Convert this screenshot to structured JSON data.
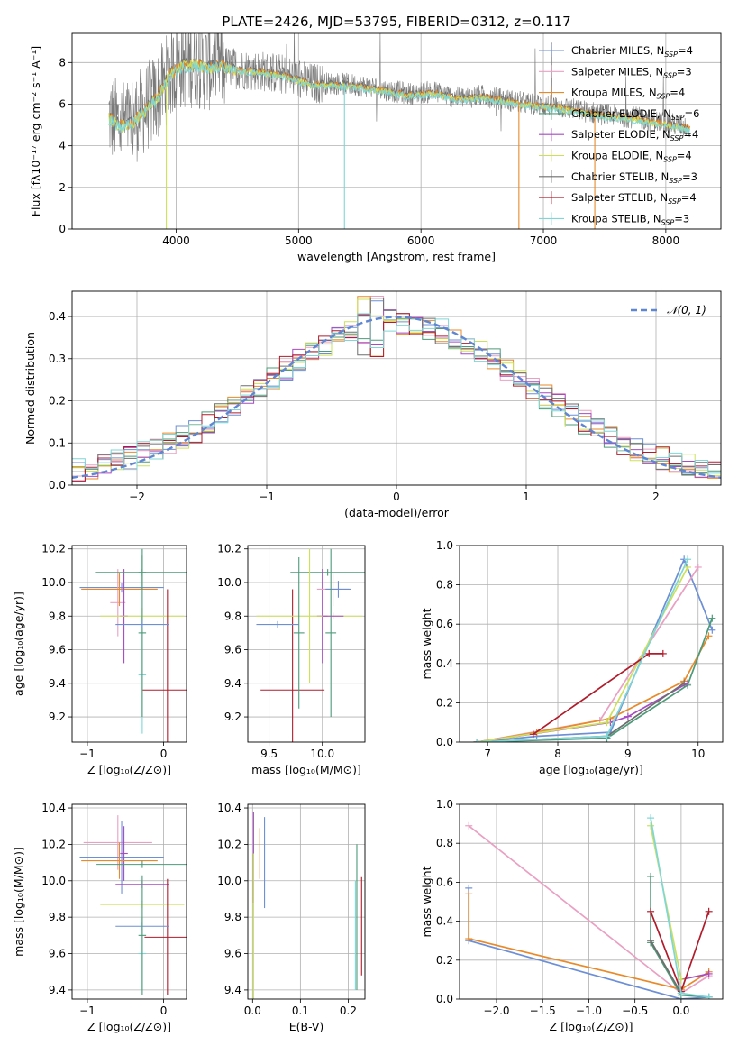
{
  "title": "PLATE=2426, MJD=53795, FIBERID=0312, z=0.117",
  "colors": [
    "#6d8fd6",
    "#e9a0c2",
    "#e88a2a",
    "#4d9a79",
    "#a64bc0",
    "#cde05a",
    "#6e6e6e",
    "#b01c2b",
    "#7fd6d6"
  ],
  "chart_data": [
    {
      "id": "spectrum",
      "type": "line",
      "xlabel": "wavelength [Angstrom, rest frame]",
      "ylabel": "Flux [fλ10⁻¹⁷ erg cm⁻² s⁻¹ A⁻¹]",
      "xlim": [
        3150,
        8450
      ],
      "ylim": [
        0,
        9.4
      ],
      "xticks": [
        4000,
        5000,
        6000,
        7000,
        8000
      ],
      "yticks": [
        0,
        2,
        4,
        6,
        8
      ],
      "legend_position": "top-right",
      "series": [
        {
          "name": "Chabrier MILES, N_SSP=4"
        },
        {
          "name": "Salpeter MILES, N_SSP=3"
        },
        {
          "name": "Kroupa MILES, N_SSP=4"
        },
        {
          "name": "Chabrier ELODIE, N_SSP=6"
        },
        {
          "name": "Salpeter ELODIE, N_SSP=4"
        },
        {
          "name": "Kroupa ELODIE, N_SSP=4"
        },
        {
          "name": "Chabrier STELIB, N_SSP=3"
        },
        {
          "name": "Salpeter STELIB, N_SSP=4"
        },
        {
          "name": "Kroupa STELIB, N_SSP=3"
        }
      ],
      "observed_continuum": {
        "x": [
          3450,
          3550,
          3650,
          3750,
          3850,
          3950,
          4050,
          4150,
          4250,
          4350,
          4500,
          4700,
          4900,
          5100,
          5300,
          5500,
          5700,
          5900,
          6100,
          6300,
          6500,
          6700,
          6900,
          7100,
          7300,
          7500,
          7700,
          7900,
          8100,
          8200
        ],
        "y": [
          5.4,
          5.0,
          5.2,
          5.8,
          6.4,
          7.5,
          7.9,
          8.0,
          7.8,
          7.9,
          7.7,
          7.6,
          7.4,
          7.0,
          7.0,
          6.9,
          6.7,
          6.5,
          6.6,
          6.3,
          6.4,
          6.2,
          6.0,
          5.9,
          5.7,
          5.5,
          5.4,
          5.2,
          5.0,
          4.9
        ]
      }
    },
    {
      "id": "residuals",
      "type": "histogram",
      "xlabel": "(data-model)/error",
      "ylabel": "Normed distribution",
      "xlim": [
        -2.5,
        2.5
      ],
      "ylim": [
        0,
        0.46
      ],
      "xticks": [
        -2,
        -1,
        0,
        1,
        2
      ],
      "yticks": [
        0.0,
        0.1,
        0.2,
        0.3,
        0.4
      ],
      "legend": "𝒩(0, 1)",
      "legend_position": "top-right",
      "bin_width": 0.1,
      "bin_start": -2.5
    },
    {
      "id": "age-vs-Z",
      "type": "errorbar",
      "xlabel": "Z [log₁₀(Z/Z⊙)]",
      "ylabel": "age  [log₁₀(age/yr)]",
      "xlim": [
        -1.2,
        0.3
      ],
      "ylim": [
        9.05,
        10.22
      ],
      "xticks": [
        -1,
        0
      ],
      "yticks": [
        9.2,
        9.4,
        9.6,
        9.8,
        10.0,
        10.2
      ],
      "points": [
        {
          "c": 0,
          "x": -0.55,
          "xe": 0.55,
          "y": 9.97,
          "ye": 0.03
        },
        {
          "c": 1,
          "x": -0.6,
          "xe": 0.1,
          "y": 9.88,
          "ye": 0.2
        },
        {
          "c": 2,
          "x": -0.58,
          "xe": 0.5,
          "y": 9.96,
          "ye": 0.1
        },
        {
          "c": 3,
          "x": -0.28,
          "xe": 0.05,
          "y": 10.06,
          "ye": 0.1
        },
        {
          "c": 4,
          "x": -0.52,
          "xe": 0.05,
          "y": 9.8,
          "ye": 0.28
        },
        {
          "c": 5,
          "x": -0.28,
          "xe": 0.55,
          "y": 9.8,
          "ye": 0.05
        },
        {
          "c": 3,
          "x": -0.28,
          "xe": 0.62,
          "y": 10.06,
          "ye": 0.02
        },
        {
          "c": 7,
          "x": 0.05,
          "xe": 0.33,
          "y": 9.36,
          "ye": 0.6
        },
        {
          "c": 8,
          "x": -0.28,
          "xe": 0.05,
          "y": 9.45,
          "ye": 0.35
        },
        {
          "c": 3,
          "x": -0.28,
          "xe": 0.05,
          "y": 9.7,
          "ye": 0.5
        },
        {
          "c": 0,
          "x": -0.28,
          "xe": 0.35,
          "y": 9.75,
          "ye": 0.02
        }
      ]
    },
    {
      "id": "age-vs-mass",
      "type": "errorbar",
      "xlabel": "mass [log₁₀(M/M⊙)]",
      "ylabel": "",
      "xlim": [
        9.3,
        10.4
      ],
      "ylim": [
        9.05,
        10.22
      ],
      "xticks": [
        9.5,
        10.0
      ],
      "yticks": [
        9.2,
        9.4,
        9.6,
        9.8,
        10.0,
        10.2
      ],
      "points": [
        {
          "c": 3,
          "x": 10.05,
          "xe": 0.35,
          "y": 10.06,
          "ye": 0.02
        },
        {
          "c": 7,
          "x": 9.72,
          "xe": 0.3,
          "y": 9.36,
          "ye": 0.6
        },
        {
          "c": 4,
          "x": 10.0,
          "xe": 0.05,
          "y": 9.8,
          "ye": 0.28
        },
        {
          "c": 5,
          "x": 9.88,
          "xe": 0.5,
          "y": 9.8,
          "ye": 0.4
        },
        {
          "c": 3,
          "x": 9.78,
          "xe": 0.05,
          "y": 9.7,
          "ye": 0.45
        },
        {
          "c": 0,
          "x": 9.58,
          "xe": 0.2,
          "y": 9.75,
          "ye": 0.02
        },
        {
          "c": 1,
          "x": 10.1,
          "xe": 0.15,
          "y": 9.96,
          "ye": 0.1
        },
        {
          "c": 0,
          "x": 10.15,
          "xe": 0.12,
          "y": 9.96,
          "ye": 0.05
        },
        {
          "c": 3,
          "x": 10.08,
          "xe": 0.05,
          "y": 9.7,
          "ye": 0.5
        },
        {
          "c": 4,
          "x": 10.1,
          "xe": 0.1,
          "y": 9.8,
          "ye": 0.02
        }
      ]
    },
    {
      "id": "weight-vs-age",
      "type": "line",
      "xlabel": "age  [log₁₀(age/yr)]",
      "ylabel": "mass weight",
      "xlim": [
        6.6,
        10.35
      ],
      "ylim": [
        0,
        1.0
      ],
      "xticks": [
        7,
        8,
        9,
        10
      ],
      "yticks": [
        0.0,
        0.2,
        0.4,
        0.6,
        0.8,
        1.0
      ],
      "series": [
        {
          "c": 0,
          "x": [
            6.85,
            7.7,
            8.75,
            9.8,
            10.2
          ],
          "y": [
            0.0,
            0.03,
            0.05,
            0.93,
            0.57
          ]
        },
        {
          "c": 1,
          "x": [
            6.85,
            8.6,
            10.0
          ],
          "y": [
            0.0,
            0.11,
            0.89
          ]
        },
        {
          "c": 2,
          "x": [
            6.85,
            7.7,
            8.75,
            9.8,
            10.15
          ],
          "y": [
            0.0,
            0.05,
            0.12,
            0.31,
            0.54
          ]
        },
        {
          "c": 3,
          "x": [
            6.85,
            8.7,
            9.85,
            10.2
          ],
          "y": [
            0.0,
            0.02,
            0.29,
            0.63
          ]
        },
        {
          "c": 4,
          "x": [
            6.85,
            8.75,
            9.0,
            9.85
          ],
          "y": [
            0.0,
            0.1,
            0.13,
            0.3
          ]
        },
        {
          "c": 5,
          "x": [
            6.85,
            8.7,
            9.85
          ],
          "y": [
            0.0,
            0.1,
            0.89
          ]
        },
        {
          "c": 6,
          "x": [
            6.85,
            8.7,
            9.8
          ],
          "y": [
            0.0,
            0.03,
            0.3
          ]
        },
        {
          "c": 7,
          "x": [
            7.65,
            9.3,
            9.5
          ],
          "y": [
            0.04,
            0.45,
            0.45
          ]
        },
        {
          "c": 8,
          "x": [
            6.85,
            8.7,
            9.85
          ],
          "y": [
            0.0,
            0.03,
            0.93
          ]
        }
      ]
    },
    {
      "id": "mass-vs-Z",
      "type": "errorbar",
      "xlabel": "Z [log₁₀(Z/Z⊙)]",
      "ylabel": "mass [log₁₀(M/M⊙)]",
      "xlim": [
        -1.2,
        0.3
      ],
      "ylim": [
        9.35,
        10.42
      ],
      "xticks": [
        -1,
        0
      ],
      "yticks": [
        9.4,
        9.6,
        9.8,
        10.0,
        10.2,
        10.4
      ],
      "points": [
        {
          "c": 1,
          "x": -0.6,
          "xe": 0.45,
          "y": 10.21,
          "ye": 0.15
        },
        {
          "c": 0,
          "x": -0.55,
          "xe": 0.55,
          "y": 10.13,
          "ye": 0.2
        },
        {
          "c": 4,
          "x": -0.52,
          "xe": 0.05,
          "y": 10.15,
          "ye": 0.15
        },
        {
          "c": 2,
          "x": -0.58,
          "xe": 0.5,
          "y": 10.11,
          "ye": 0.1
        },
        {
          "c": 3,
          "x": -0.28,
          "xe": 0.6,
          "y": 10.09,
          "ye": 0.02
        },
        {
          "c": 4,
          "x": -0.28,
          "xe": 0.35,
          "y": 9.98,
          "ye": 0.02
        },
        {
          "c": 5,
          "x": -0.28,
          "xe": 0.55,
          "y": 9.87,
          "ye": 0.02
        },
        {
          "c": 7,
          "x": 0.05,
          "xe": 0.3,
          "y": 9.69,
          "ye": 0.32
        },
        {
          "c": 0,
          "x": -0.28,
          "xe": 0.35,
          "y": 9.75,
          "ye": 0.02
        },
        {
          "c": 8,
          "x": -0.28,
          "xe": 0.05,
          "y": 9.6,
          "ye": 0.2
        },
        {
          "c": 3,
          "x": -0.28,
          "xe": 0.05,
          "y": 9.7,
          "ye": 0.33
        }
      ]
    },
    {
      "id": "mass-vs-ebv",
      "type": "errorbar",
      "xlabel": "E(B-V)",
      "ylabel": "",
      "xlim": [
        -0.01,
        0.235
      ],
      "ylim": [
        9.35,
        10.42
      ],
      "xticks": [
        0.0,
        0.1,
        0.2
      ],
      "yticks": [
        9.4,
        9.6,
        9.8,
        10.0,
        10.2,
        10.4
      ],
      "points": [
        {
          "c": 4,
          "x": 0.002,
          "xe": 0,
          "y": 10.13,
          "ye": 0.25
        },
        {
          "c": 5,
          "x": 0.002,
          "xe": 0,
          "y": 9.75,
          "ye": 0.4
        },
        {
          "c": 2,
          "x": 0.015,
          "xe": 0,
          "y": 10.15,
          "ye": 0.14
        },
        {
          "c": 0,
          "x": 0.025,
          "xe": 0,
          "y": 10.1,
          "ye": 0.25
        },
        {
          "c": 8,
          "x": 0.215,
          "xe": 0,
          "y": 9.7,
          "ye": 0.3
        },
        {
          "c": 3,
          "x": 0.218,
          "xe": 0,
          "y": 9.8,
          "ye": 0.4
        },
        {
          "c": 7,
          "x": 0.228,
          "xe": 0,
          "y": 9.75,
          "ye": 0.27
        }
      ]
    },
    {
      "id": "weight-vs-Z",
      "type": "line",
      "xlabel": "Z [log₁₀(Z/Z⊙)]",
      "ylabel": "mass weight",
      "xlim": [
        -2.4,
        0.45
      ],
      "ylim": [
        0,
        1.0
      ],
      "xticks": [
        -2.0,
        -1.5,
        -1.0,
        -0.5,
        0.0
      ],
      "yticks": [
        0.0,
        0.2,
        0.4,
        0.6,
        0.8,
        1.0
      ],
      "series": [
        {
          "c": 0,
          "x": [
            -2.3,
            -2.3,
            0.0,
            0.3
          ],
          "y": [
            0.57,
            0.3,
            0.0,
            0.01
          ]
        },
        {
          "c": 1,
          "x": [
            -2.3,
            0.0,
            0.3
          ],
          "y": [
            0.89,
            0.03,
            0.12
          ]
        },
        {
          "c": 2,
          "x": [
            -2.3,
            -2.3,
            0.0,
            0.3
          ],
          "y": [
            0.54,
            0.31,
            0.05,
            0.14
          ]
        },
        {
          "c": 3,
          "x": [
            -0.33,
            -0.33,
            0.0,
            0.3
          ],
          "y": [
            0.63,
            0.29,
            0.02,
            0.01
          ]
        },
        {
          "c": 4,
          "x": [
            0.0,
            0.3
          ],
          "y": [
            0.1,
            0.13
          ]
        },
        {
          "c": 5,
          "x": [
            -0.33,
            0.0
          ],
          "y": [
            0.89,
            0.1
          ]
        },
        {
          "c": 6,
          "x": [
            -0.33,
            0.0
          ],
          "y": [
            0.3,
            0.03
          ]
        },
        {
          "c": 7,
          "x": [
            -0.33,
            0.0,
            0.3
          ],
          "y": [
            0.45,
            0.04,
            0.45
          ]
        },
        {
          "c": 8,
          "x": [
            -0.33,
            0.0,
            0.3
          ],
          "y": [
            0.93,
            0.03,
            0.01
          ]
        }
      ]
    }
  ]
}
